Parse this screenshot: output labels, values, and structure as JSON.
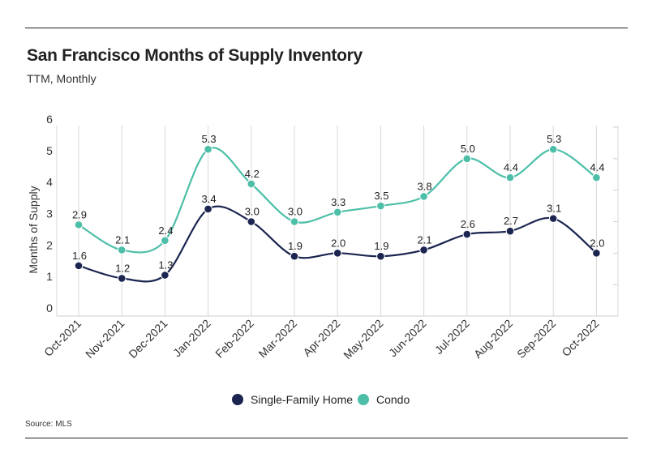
{
  "header": {
    "title": "San Francisco Months of Supply Inventory",
    "subtitle": "TTM, Monthly"
  },
  "footer": {
    "source": "Source:  MLS"
  },
  "chart_data": {
    "type": "line",
    "title": "San Francisco Months of Supply Inventory",
    "subtitle": "TTM, Monthly",
    "xlabel": "",
    "ylabel": "Months of Supply",
    "ylim": [
      0,
      6
    ],
    "yticks": [
      0,
      1,
      2,
      3,
      4,
      5,
      6
    ],
    "grid": "vertical",
    "legend": "bottom-center",
    "categories": [
      "Oct-2021",
      "Nov-2021",
      "Dec-2021",
      "Jan-2022",
      "Feb-2022",
      "Mar-2022",
      "Apr-2022",
      "May-2022",
      "Jun-2022",
      "Jul-2022",
      "Aug-2022",
      "Sep-2022",
      "Oct-2022"
    ],
    "series": [
      {
        "name": "Single-Family Home",
        "color": "#1b2550",
        "values": [
          1.6,
          1.2,
          1.3,
          3.4,
          3.0,
          1.9,
          2.0,
          1.9,
          2.1,
          2.6,
          2.7,
          3.1,
          2.0
        ],
        "labels": [
          "1.6",
          "1.2",
          "1.3",
          "3.4",
          "3.0",
          "1.9",
          "2.0",
          "1.9",
          "2.1",
          "2.6",
          "2.7",
          "3.1",
          "2.0"
        ]
      },
      {
        "name": "Condo",
        "color": "#4dbfa8",
        "values": [
          2.9,
          2.1,
          2.4,
          5.3,
          4.2,
          3.0,
          3.3,
          3.5,
          3.8,
          5.0,
          4.4,
          5.3,
          4.4
        ],
        "labels": [
          "2.9",
          "2.1",
          "2.4",
          "5.3",
          "4.2",
          "3.0",
          "3.3",
          "3.5",
          "3.8",
          "5.0",
          "4.4",
          "5.3",
          "4.4"
        ]
      }
    ]
  }
}
